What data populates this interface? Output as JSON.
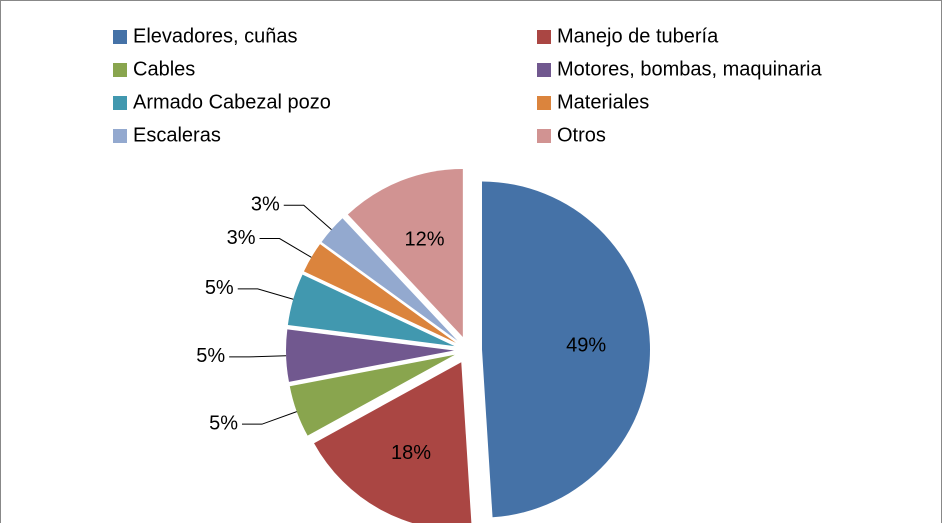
{
  "chart_data": {
    "type": "pie",
    "categories": [
      "Elevadores, cuñas",
      "Manejo de tubería",
      "Cables",
      "Motores, bombas, maquinaria",
      "Armado Cabezal pozo",
      "Materiales",
      "Escaleras",
      "Otros"
    ],
    "values": [
      49,
      18,
      5,
      5,
      5,
      3,
      3,
      12
    ],
    "value_labels": [
      "49%",
      "18%",
      "5%",
      "5%",
      "5%",
      "3%",
      "3%",
      "12%"
    ],
    "colors": [
      "#4572a7",
      "#aa4643",
      "#89a54e",
      "#71588f",
      "#4198af",
      "#db843d",
      "#93a9cf",
      "#d19392"
    ],
    "legend": "top"
  }
}
